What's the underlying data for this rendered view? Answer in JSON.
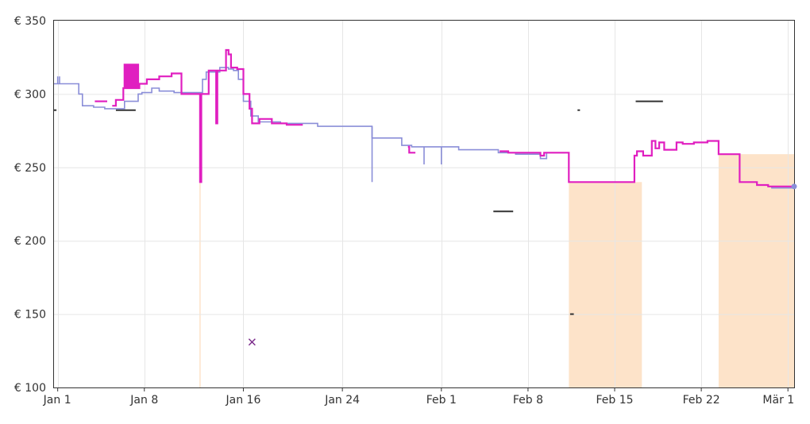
{
  "chart_data": {
    "type": "line",
    "title": "",
    "xlabel": "",
    "ylabel": "",
    "ylim": [
      100,
      350
    ],
    "grid": true,
    "legend": "none",
    "y_ticks": [
      {
        "value": 100,
        "label": "€ 100"
      },
      {
        "value": 150,
        "label": "€ 150"
      },
      {
        "value": 200,
        "label": "€ 200"
      },
      {
        "value": 250,
        "label": "€ 250"
      },
      {
        "value": 300,
        "label": "€ 300"
      },
      {
        "value": 350,
        "label": "€ 350"
      }
    ],
    "x_ticks": [
      {
        "value": 0,
        "label": "Jan 1"
      },
      {
        "value": 7,
        "label": "Jan 8"
      },
      {
        "value": 15,
        "label": "Jan 16"
      },
      {
        "value": 23,
        "label": "Jan 24"
      },
      {
        "value": 31,
        "label": "Feb 1"
      },
      {
        "value": 38,
        "label": "Feb 8"
      },
      {
        "value": 45,
        "label": "Feb 15"
      },
      {
        "value": 52,
        "label": "Feb 22"
      },
      {
        "value": 59,
        "label": "Mär 1"
      }
    ],
    "xlim": [
      -0.3,
      59.5
    ],
    "colors": {
      "amazon": "#e01fc0",
      "third_party": "#8a8ed8",
      "shade": "#fde3c9",
      "used": "#333333",
      "marker": "#7a2a8a"
    },
    "series": [
      {
        "key": "third_party",
        "points": [
          [
            -0.3,
            307
          ],
          [
            1.7,
            307
          ],
          [
            1.7,
            300
          ],
          [
            2.0,
            300
          ],
          [
            2.0,
            292
          ],
          [
            2.9,
            292
          ],
          [
            2.9,
            291
          ],
          [
            3.8,
            291
          ],
          [
            3.8,
            290
          ],
          [
            5.4,
            290
          ],
          [
            5.4,
            295
          ],
          [
            6.5,
            295
          ],
          [
            6.5,
            300
          ],
          [
            6.8,
            300
          ],
          [
            6.8,
            301
          ],
          [
            7.6,
            301
          ],
          [
            7.6,
            304
          ],
          [
            8.2,
            304
          ],
          [
            8.2,
            302
          ],
          [
            9.4,
            302
          ],
          [
            9.4,
            301
          ],
          [
            11.7,
            301
          ],
          [
            11.7,
            310
          ],
          [
            12.0,
            310
          ],
          [
            12.0,
            315
          ],
          [
            13.1,
            315
          ],
          [
            13.1,
            318
          ],
          [
            13.8,
            318
          ],
          [
            13.8,
            317
          ],
          [
            14.2,
            317
          ],
          [
            14.2,
            316
          ],
          [
            14.6,
            316
          ],
          [
            14.6,
            310
          ],
          [
            15.0,
            310
          ],
          [
            15.0,
            295
          ],
          [
            15.6,
            295
          ],
          [
            15.6,
            285
          ],
          [
            16.2,
            285
          ],
          [
            16.2,
            281
          ],
          [
            18.0,
            281
          ],
          [
            18.0,
            280
          ],
          [
            21.0,
            280
          ],
          [
            21.0,
            278
          ],
          [
            25.4,
            278
          ],
          [
            25.4,
            270
          ],
          [
            27.8,
            270
          ],
          [
            27.8,
            265
          ],
          [
            28.6,
            265
          ],
          [
            28.6,
            264
          ],
          [
            32.4,
            264
          ],
          [
            32.4,
            262
          ],
          [
            35.6,
            262
          ],
          [
            35.6,
            260
          ],
          [
            37.0,
            260
          ],
          [
            37.0,
            259
          ],
          [
            39.0,
            259
          ],
          [
            39.0,
            256
          ],
          [
            39.5,
            256
          ],
          [
            39.5,
            260
          ],
          [
            41.0,
            260
          ]
        ]
      },
      {
        "key": "third_party",
        "points": [
          [
            57.4,
            237
          ],
          [
            57.7,
            237
          ],
          [
            57.7,
            236
          ],
          [
            59.5,
            236
          ]
        ]
      },
      {
        "key": "amazon",
        "points": [
          [
            3.0,
            295
          ],
          [
            4.0,
            295
          ]
        ]
      },
      {
        "key": "amazon",
        "points": [
          [
            4.4,
            292
          ],
          [
            4.7,
            292
          ],
          [
            4.7,
            296
          ],
          [
            5.3,
            296
          ],
          [
            5.3,
            304
          ],
          [
            5.4,
            304
          ],
          [
            5.4,
            320
          ],
          [
            5.5,
            320
          ],
          [
            5.5,
            304
          ],
          [
            5.6,
            304
          ],
          [
            5.6,
            320
          ],
          [
            5.7,
            320
          ],
          [
            5.7,
            304
          ],
          [
            5.8,
            304
          ],
          [
            5.8,
            320
          ],
          [
            5.9,
            320
          ],
          [
            5.9,
            304
          ],
          [
            6.0,
            304
          ],
          [
            6.0,
            320
          ],
          [
            6.1,
            320
          ],
          [
            6.1,
            304
          ],
          [
            6.2,
            304
          ],
          [
            6.2,
            320
          ],
          [
            6.3,
            320
          ],
          [
            6.3,
            304
          ],
          [
            6.4,
            304
          ],
          [
            6.4,
            320
          ],
          [
            6.5,
            320
          ],
          [
            6.5,
            304
          ],
          [
            6.6,
            304
          ],
          [
            6.6,
            307
          ],
          [
            7.2,
            307
          ],
          [
            7.2,
            310
          ],
          [
            8.2,
            310
          ],
          [
            8.2,
            312
          ],
          [
            9.2,
            312
          ],
          [
            9.2,
            314
          ],
          [
            10.0,
            314
          ],
          [
            10.0,
            300
          ],
          [
            11.5,
            300
          ],
          [
            11.5,
            240
          ],
          [
            11.6,
            240
          ],
          [
            11.6,
            300
          ],
          [
            12.2,
            300
          ],
          [
            12.2,
            316
          ],
          [
            12.8,
            316
          ],
          [
            12.8,
            280
          ],
          [
            12.9,
            280
          ],
          [
            12.9,
            316
          ],
          [
            13.6,
            316
          ],
          [
            13.6,
            330
          ],
          [
            13.8,
            330
          ],
          [
            13.8,
            327
          ],
          [
            14.0,
            327
          ],
          [
            14.0,
            318
          ],
          [
            14.5,
            318
          ],
          [
            14.5,
            317
          ],
          [
            15.0,
            317
          ],
          [
            15.0,
            300
          ],
          [
            15.5,
            300
          ],
          [
            15.5,
            290
          ],
          [
            15.7,
            290
          ],
          [
            15.7,
            280
          ],
          [
            16.3,
            280
          ],
          [
            16.3,
            283
          ],
          [
            17.3,
            283
          ],
          [
            17.3,
            280
          ],
          [
            18.5,
            280
          ],
          [
            18.5,
            279
          ],
          [
            19.8,
            279
          ]
        ]
      },
      {
        "key": "amazon",
        "points": [
          [
            28.3,
            264
          ],
          [
            28.4,
            264
          ],
          [
            28.4,
            260
          ],
          [
            28.9,
            260
          ]
        ]
      },
      {
        "key": "amazon",
        "points": [
          [
            35.7,
            261
          ],
          [
            36.4,
            261
          ],
          [
            36.4,
            260
          ],
          [
            39.0,
            260
          ],
          [
            39.0,
            258
          ],
          [
            39.3,
            258
          ],
          [
            39.3,
            260
          ],
          [
            41.3,
            260
          ],
          [
            41.3,
            240
          ],
          [
            46.6,
            240
          ],
          [
            46.6,
            258
          ],
          [
            46.8,
            258
          ],
          [
            46.8,
            261
          ],
          [
            47.3,
            261
          ],
          [
            47.3,
            258
          ],
          [
            48.0,
            258
          ],
          [
            48.0,
            268
          ],
          [
            48.3,
            268
          ],
          [
            48.3,
            263
          ],
          [
            48.6,
            263
          ],
          [
            48.6,
            267
          ],
          [
            49.0,
            267
          ],
          [
            49.0,
            262
          ],
          [
            50.0,
            262
          ],
          [
            50.0,
            267
          ],
          [
            50.5,
            267
          ],
          [
            50.5,
            266
          ],
          [
            51.4,
            266
          ],
          [
            51.4,
            267
          ],
          [
            52.5,
            267
          ],
          [
            52.5,
            268
          ],
          [
            53.4,
            268
          ],
          [
            53.4,
            259
          ],
          [
            55.1,
            259
          ],
          [
            55.1,
            240
          ],
          [
            56.5,
            240
          ],
          [
            56.5,
            238
          ],
          [
            57.4,
            238
          ],
          [
            57.4,
            237
          ],
          [
            59.5,
            237
          ]
        ]
      }
    ],
    "vertical_spikes": [
      {
        "key": "third_party",
        "x": 25.4,
        "from": 278,
        "to": 240
      },
      {
        "key": "third_party",
        "x": 29.6,
        "from": 264,
        "to": 252
      },
      {
        "key": "third_party",
        "x": 31.0,
        "from": 264,
        "to": 252
      },
      {
        "key": "third_party",
        "x": 0.0,
        "from": 307,
        "to": 312
      },
      {
        "key": "third_party",
        "x": 0.15,
        "from": 307,
        "to": 312
      }
    ],
    "shaded_regions": [
      {
        "x0": 41.3,
        "x1": 47.2,
        "y": 240
      },
      {
        "x0": 53.4,
        "x1": 59.5,
        "y": 259
      }
    ],
    "faint_vertical_lines": [
      {
        "x": 11.5,
        "y": 240
      }
    ],
    "used_segments": [
      {
        "x0": 4.7,
        "x1": 6.3,
        "y": 289
      },
      {
        "x0": 35.2,
        "x1": 36.8,
        "y": 220
      },
      {
        "x0": 46.7,
        "x1": 48.9,
        "y": 295
      },
      {
        "x0": 41.4,
        "x1": 41.7,
        "y": 150
      },
      {
        "x0": 42.0,
        "x1": 42.2,
        "y": 289
      },
      {
        "x0": -0.3,
        "x1": -0.1,
        "y": 289
      }
    ],
    "markers": [
      {
        "x": 15.7,
        "y": 131,
        "shape": "x"
      }
    ],
    "end_point": {
      "key": "third_party",
      "x": 59.5,
      "y": 237
    }
  }
}
